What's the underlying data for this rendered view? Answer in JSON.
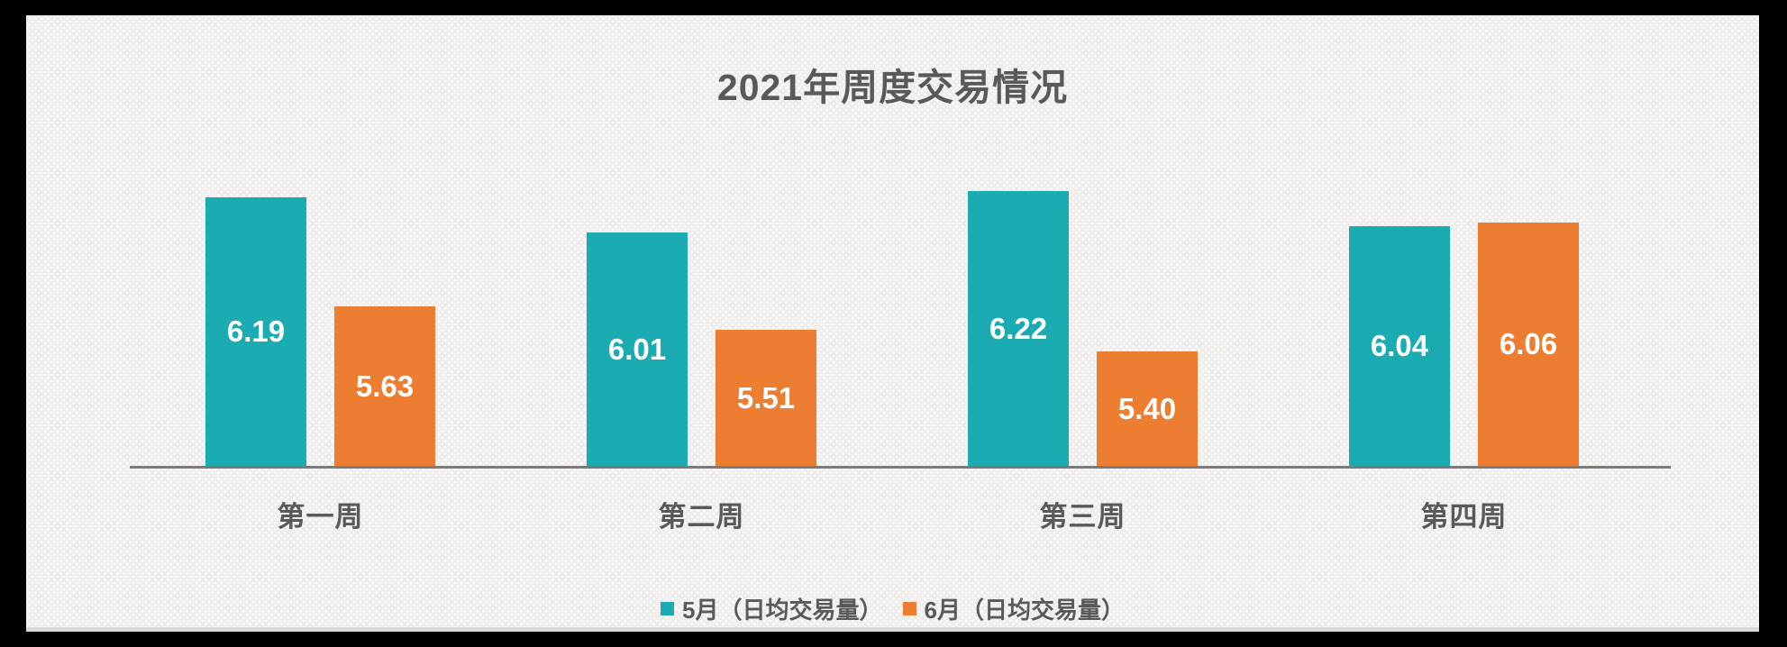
{
  "frame": {
    "color": "#000000"
  },
  "slide": {
    "background": "#efeeec"
  },
  "chart_data": {
    "type": "bar",
    "title": "2021年周度交易情况",
    "categories": [
      "第一周",
      "第二周",
      "第三周",
      "第四周"
    ],
    "series": [
      {
        "name": "5月（日均交易量）",
        "color": "#1AACB2",
        "values": [
          6.19,
          6.01,
          6.22,
          6.04
        ]
      },
      {
        "name": "6月（日均交易量）",
        "color": "#ED7D31",
        "values": [
          5.63,
          5.51,
          5.4,
          6.06
        ]
      }
    ],
    "ylim": [
      4.81,
      6.55
    ],
    "y_axis_visible": false,
    "x_axis_line_visible": true,
    "gridlines": false,
    "value_labels": "inside bar, vertically centered, white, two decimals",
    "legend_position": "bottom-center",
    "colors": {
      "axis_line": "#7B7B7B",
      "title_text": "#595959",
      "category_text": "#595959",
      "value_label_text": "#FFFFFF"
    }
  }
}
